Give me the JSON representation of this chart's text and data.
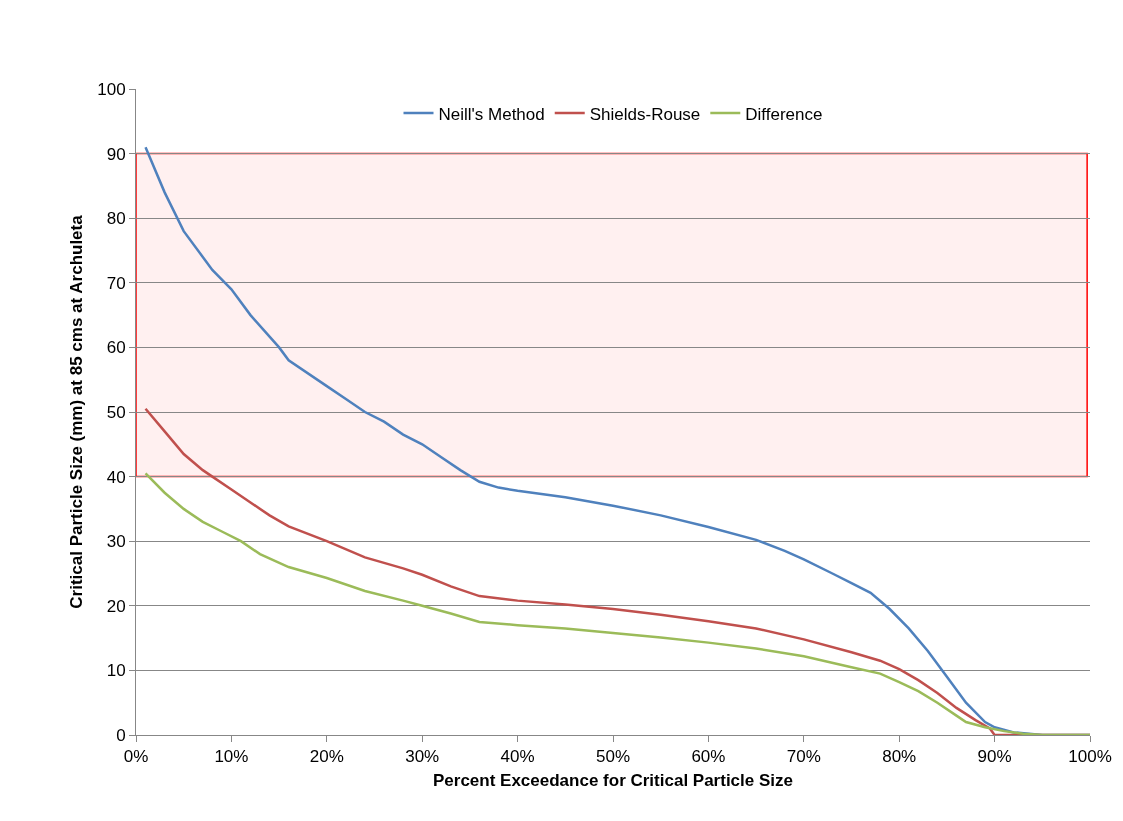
{
  "chart_data": {
    "type": "line",
    "xlabel": "Percent Exceedance for Critical Particle Size",
    "ylabel": "Critical Particle Size (mm) at 85 cms at Archuleta",
    "xlim": [
      0,
      100
    ],
    "ylim": [
      0,
      100
    ],
    "xticks": [
      {
        "value": 0,
        "label": "0%"
      },
      {
        "value": 10,
        "label": "10%"
      },
      {
        "value": 20,
        "label": "20%"
      },
      {
        "value": 30,
        "label": "30%"
      },
      {
        "value": 40,
        "label": "40%"
      },
      {
        "value": 50,
        "label": "50%"
      },
      {
        "value": 60,
        "label": "60%"
      },
      {
        "value": 70,
        "label": "70%"
      },
      {
        "value": 80,
        "label": "80%"
      },
      {
        "value": 90,
        "label": "90%"
      },
      {
        "value": 100,
        "label": "100%"
      }
    ],
    "yticks": [
      0,
      10,
      20,
      30,
      40,
      50,
      60,
      70,
      80,
      90,
      100
    ],
    "grid": "y",
    "legend": "top",
    "marker": "none",
    "line_style": "solid",
    "bands": [
      {
        "axis": "y",
        "from": 40,
        "to": 90,
        "color": "#ff0000"
      }
    ],
    "series": [
      {
        "name": "Neill's Method",
        "color": "#4f81bd",
        "x": [
          1,
          3,
          5,
          7,
          8,
          10,
          12,
          15,
          16,
          20,
          22,
          24,
          26,
          28,
          30,
          32,
          34,
          36,
          38,
          40,
          45,
          50,
          55,
          60,
          65,
          68,
          70,
          73,
          75,
          77,
          79,
          81,
          83,
          85,
          87,
          89,
          90,
          92,
          95,
          100
        ],
        "values": [
          91,
          84,
          78,
          74,
          72,
          69,
          65,
          60,
          58,
          54,
          52,
          50,
          48.5,
          46.5,
          45,
          43,
          41,
          39.2,
          38.3,
          37.8,
          36.8,
          35.5,
          34,
          32.2,
          30.2,
          28.5,
          27.2,
          25,
          23.5,
          22,
          19.5,
          16.5,
          13,
          9,
          5,
          2,
          1.2,
          0.4,
          0,
          0
        ]
      },
      {
        "name": "Shields-Rouse",
        "color": "#c0504d",
        "x": [
          1,
          3,
          5,
          7,
          8,
          10,
          12,
          14,
          16,
          20,
          24,
          28,
          30,
          33,
          36,
          40,
          45,
          50,
          55,
          60,
          65,
          70,
          75,
          78,
          80,
          82,
          84,
          86,
          88,
          89.5,
          90,
          95,
          100
        ],
        "values": [
          50.5,
          47,
          43.5,
          41,
          40,
          38,
          36,
          34,
          32.3,
          30,
          27.5,
          25.8,
          24.8,
          23,
          21.5,
          20.8,
          20.2,
          19.5,
          18.6,
          17.6,
          16.5,
          14.8,
          12.8,
          11.5,
          10.2,
          8.5,
          6.5,
          4.2,
          2.3,
          1,
          0,
          0,
          0
        ]
      },
      {
        "name": "Difference",
        "color": "#9bbb59",
        "x": [
          1,
          3,
          5,
          7,
          9,
          11,
          13,
          16,
          20,
          24,
          28,
          30,
          33,
          36,
          40,
          45,
          50,
          55,
          60,
          65,
          70,
          75,
          78,
          80,
          82,
          84,
          86,
          87,
          89,
          91,
          93,
          95,
          100
        ],
        "values": [
          40.5,
          37.5,
          35,
          33,
          31.5,
          30,
          28,
          26,
          24.3,
          22.3,
          20.8,
          20,
          18.8,
          17.5,
          17,
          16.5,
          15.8,
          15.1,
          14.3,
          13.4,
          12.2,
          10.5,
          9.5,
          8.2,
          6.8,
          5,
          3,
          2,
          1.2,
          0.6,
          0.2,
          0,
          0
        ]
      }
    ]
  }
}
